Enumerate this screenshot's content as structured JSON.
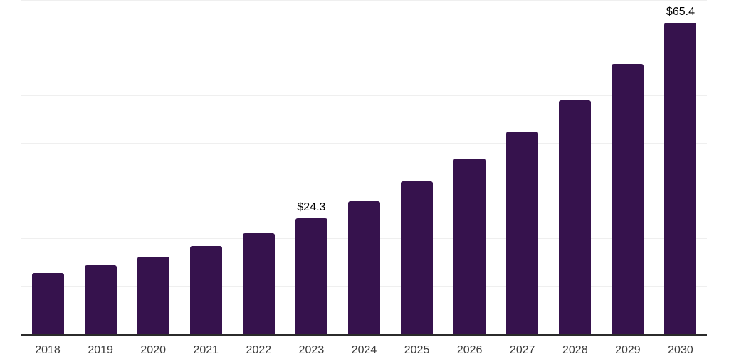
{
  "chart_data": {
    "type": "bar",
    "title": "",
    "xlabel": "",
    "ylabel": "",
    "categories": [
      "2018",
      "2019",
      "2020",
      "2021",
      "2022",
      "2023",
      "2024",
      "2025",
      "2026",
      "2027",
      "2028",
      "2029",
      "2030"
    ],
    "values": [
      12.8,
      14.5,
      16.3,
      18.5,
      21.2,
      24.3,
      27.9,
      32.1,
      36.9,
      42.5,
      49.1,
      56.7,
      65.4
    ],
    "annotations": [
      {
        "category": "2023",
        "label": "$24.3"
      },
      {
        "category": "2030",
        "label": "$65.4"
      }
    ],
    "ylim": [
      0,
      70
    ],
    "grid_step": 10,
    "grid": true,
    "y_tick_labels_visible": false,
    "legend_position": "none",
    "colors": {
      "background": "#FFFFFF",
      "bar": "#36124D",
      "gridline": "#EFEFEF",
      "axis_line": "#2B2B2B",
      "value_label": "#000000",
      "tick_label": "#3D3D3D"
    }
  }
}
